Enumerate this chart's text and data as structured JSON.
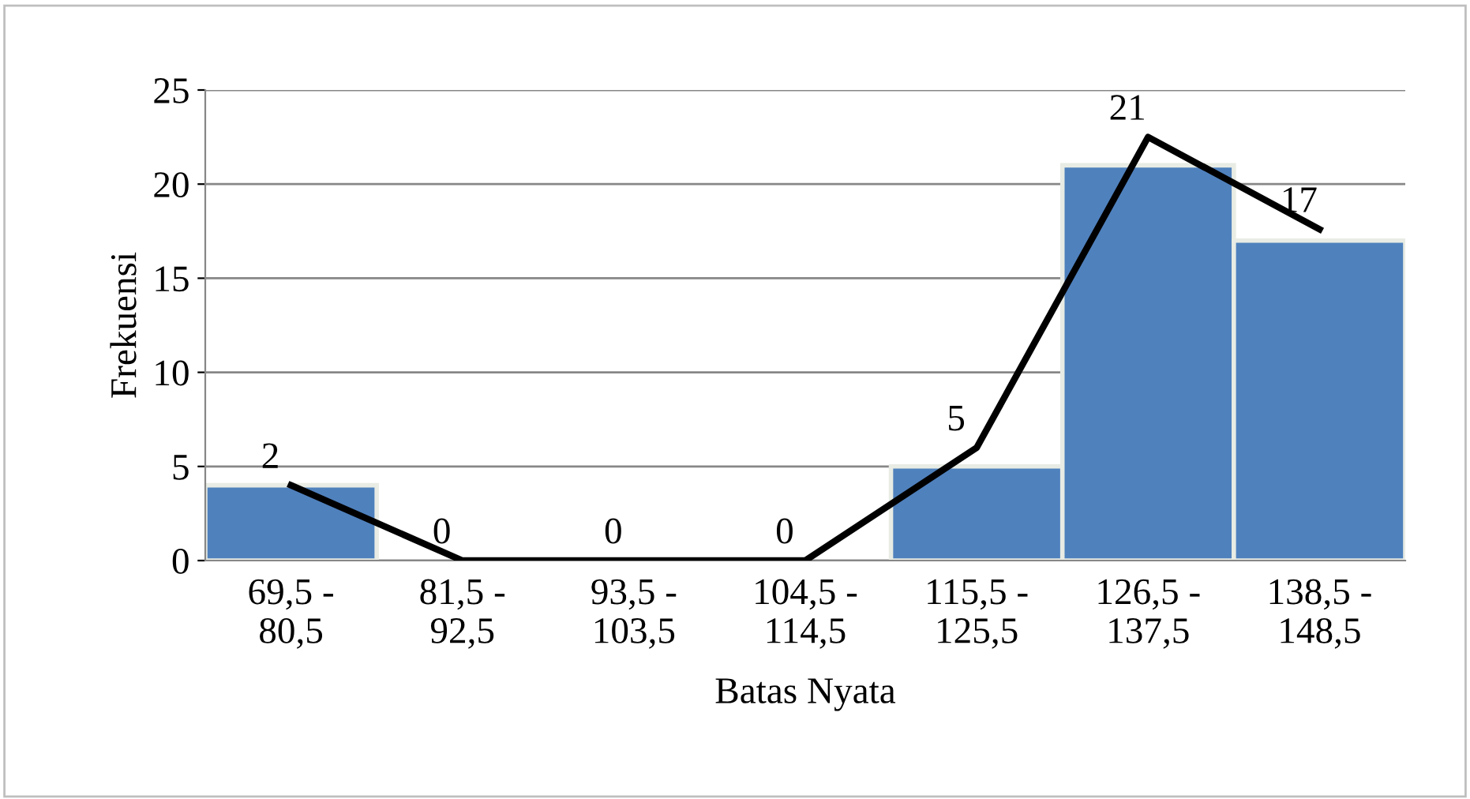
{
  "chart_data": {
    "type": "bar",
    "xlabel": "Batas Nyata",
    "ylabel": "Frekuensi",
    "categories": [
      "69,5 -\n80,5",
      "81,5 -\n92,5",
      "93,5 -\n103,5",
      "104,5 -\n114,5",
      "115,5 -\n125,5",
      "126,5 -\n137,5",
      "138,5 -\n148,5"
    ],
    "series": [
      {
        "color": "#4f81bd",
        "values": [
          4,
          0,
          0,
          0,
          5,
          21,
          17
        ],
        "value_labels": [
          null,
          "0",
          "0",
          "0",
          "5",
          "21",
          "17"
        ]
      },
      {
        "type": "line",
        "color": "#000000",
        "values": [
          4,
          0,
          0,
          0,
          6,
          22.5,
          17.6
        ]
      }
    ],
    "annotations": [
      "2"
    ],
    "ylim": [
      0,
      25
    ],
    "yticks": [
      0,
      5,
      10,
      15,
      20,
      25
    ],
    "grid": "y",
    "legend": false
  }
}
